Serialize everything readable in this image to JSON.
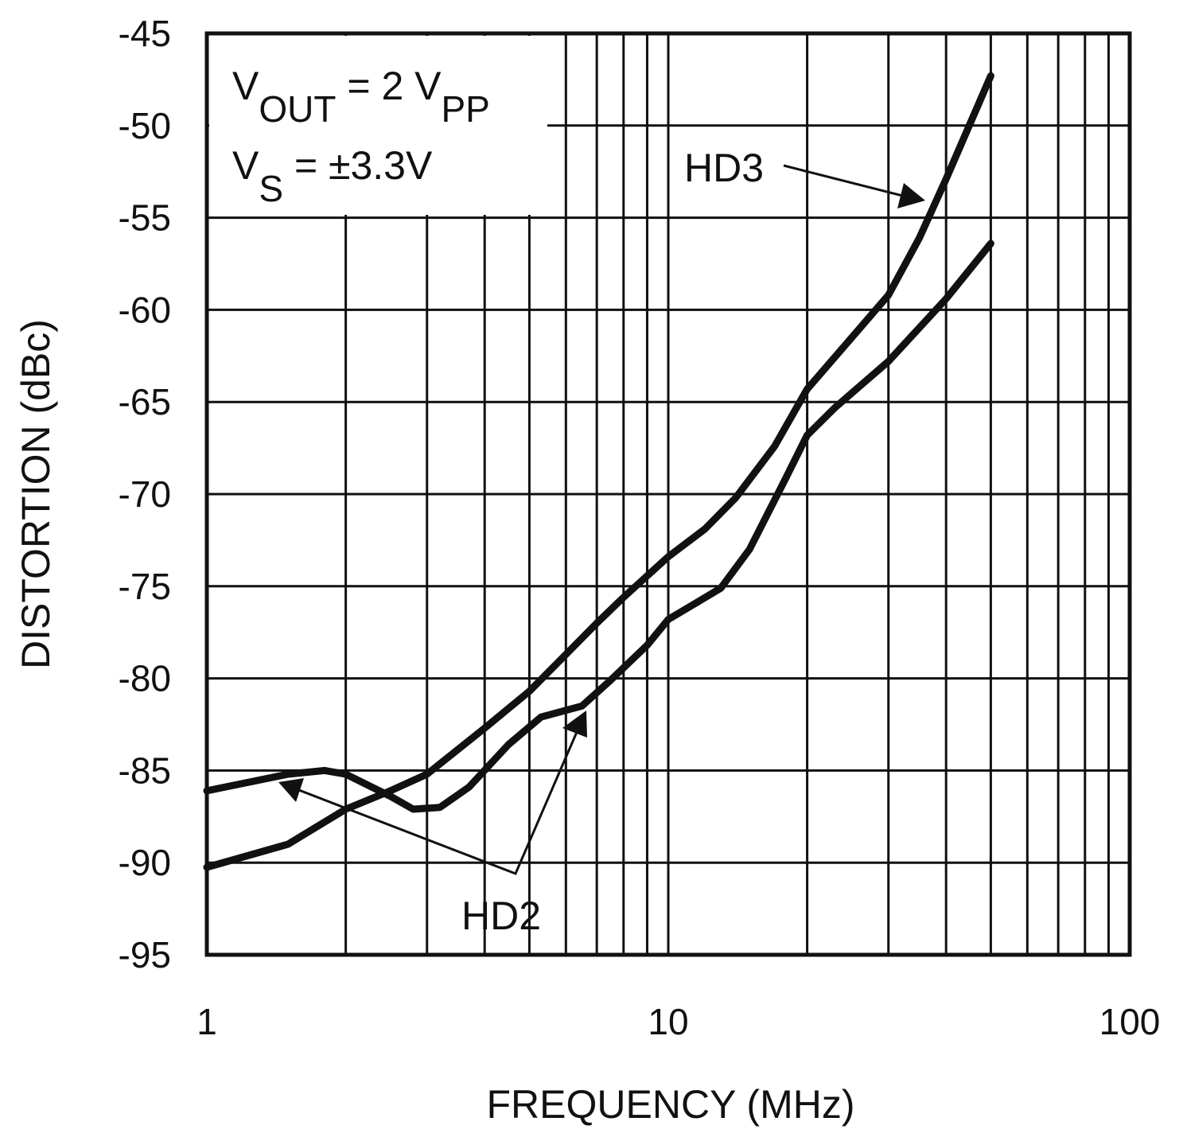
{
  "chart_data": {
    "type": "line",
    "xlabel": "FREQUENCY (MHz)",
    "ylabel": "DISTORTION (dBc)",
    "xscale": "log",
    "xlim": [
      1,
      100
    ],
    "ylim": [
      -95,
      -45
    ],
    "xticks": [
      1,
      10,
      100
    ],
    "yticks": [
      -95,
      -90,
      -85,
      -80,
      -75,
      -70,
      -65,
      -60,
      -55,
      -50,
      -45
    ],
    "grid": true,
    "minor_grid": true,
    "series": [
      {
        "name": "HD3",
        "color": "#111111",
        "x": [
          1,
          1.5,
          2,
          2.5,
          3,
          4,
          5,
          6,
          7,
          8,
          10,
          12,
          14,
          17,
          20,
          25,
          30,
          35,
          40,
          50
        ],
        "values": [
          -90.25,
          -89.0,
          -87.1,
          -86.1,
          -85.2,
          -82.7,
          -80.7,
          -78.7,
          -77.0,
          -75.6,
          -73.4,
          -71.9,
          -70.2,
          -67.4,
          -64.3,
          -61.5,
          -59.2,
          -56.1,
          -52.9,
          -47.3
        ]
      },
      {
        "name": "HD2",
        "color": "#111111",
        "x": [
          1,
          1.5,
          1.8,
          2,
          2.5,
          2.8,
          3.2,
          3.7,
          4.5,
          5.3,
          6.5,
          7.5,
          9,
          10,
          11.5,
          13,
          15,
          18,
          20,
          23,
          30,
          40,
          50
        ],
        "values": [
          -86.1,
          -85.2,
          -85.0,
          -85.2,
          -86.4,
          -87.1,
          -87.0,
          -85.9,
          -83.6,
          -82.1,
          -81.5,
          -80.1,
          -78.2,
          -76.8,
          -75.9,
          -75.1,
          -73.0,
          -69.1,
          -66.8,
          -65.3,
          -62.8,
          -59.4,
          -56.4
        ]
      }
    ],
    "conditions": [
      {
        "parts": [
          "V",
          "OUT",
          " = 2 V",
          "PP"
        ]
      },
      {
        "parts": [
          "V",
          "S",
          " = ±3.3V"
        ]
      }
    ]
  }
}
